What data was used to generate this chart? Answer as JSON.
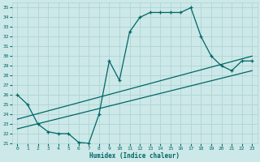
{
  "xlabel": "Humidex (Indice chaleur)",
  "bg_color": "#cce8e8",
  "grid_color": "#b0d4d4",
  "line_color": "#006666",
  "xlim": [
    -0.5,
    23.5
  ],
  "ylim": [
    21,
    35.5
  ],
  "xticks": [
    0,
    1,
    2,
    3,
    4,
    5,
    6,
    7,
    8,
    9,
    10,
    11,
    12,
    13,
    14,
    15,
    16,
    17,
    18,
    19,
    20,
    21,
    22,
    23
  ],
  "yticks": [
    21,
    22,
    23,
    24,
    25,
    26,
    27,
    28,
    29,
    30,
    31,
    32,
    33,
    34,
    35
  ],
  "line1_x": [
    0,
    1,
    2,
    3,
    4,
    5,
    6,
    7,
    8,
    9,
    10,
    11,
    12,
    13,
    14,
    15,
    16,
    17,
    18,
    19,
    20,
    21,
    22,
    23
  ],
  "line1_y": [
    26,
    25,
    23,
    22.2,
    22,
    22,
    21.1,
    21,
    24,
    29.5,
    27.5,
    32.5,
    34,
    34.5,
    34.5,
    34.5,
    34.5,
    35,
    32,
    30,
    29,
    28.5,
    29.5,
    29.5
  ],
  "line2_x": [
    0,
    23
  ],
  "line2_y": [
    23.5,
    30
  ],
  "line3_x": [
    0,
    23
  ],
  "line3_y": [
    22.5,
    28.5
  ]
}
